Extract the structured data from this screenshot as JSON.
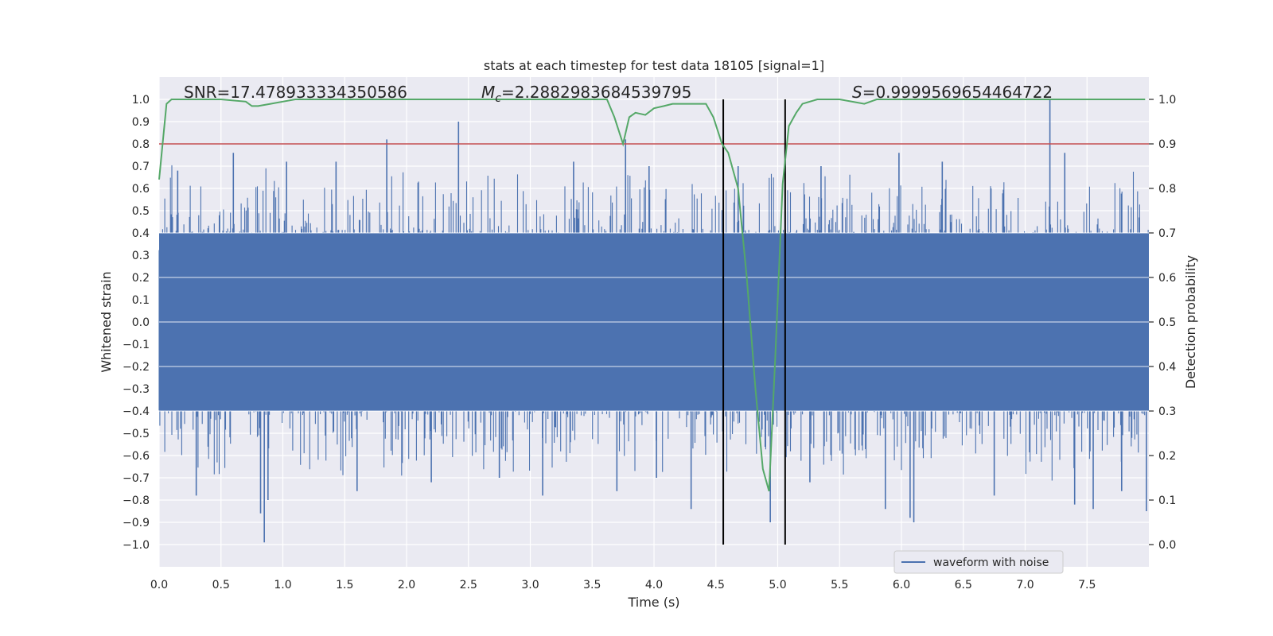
{
  "chart_data": {
    "type": "line",
    "title": "stats at each timestep for test data 18105 [signal=1]",
    "xlabel": "Time (s)",
    "ylabel_left": "Whitened strain",
    "ylabel_right": "Detection probability",
    "xlim": [
      0.0,
      8.0
    ],
    "ylim_left": [
      -1.1,
      1.1
    ],
    "ylim_right": [
      -0.05,
      1.05
    ],
    "x_ticks": [
      "0.0",
      "0.5",
      "1.0",
      "1.5",
      "2.0",
      "2.5",
      "3.0",
      "3.5",
      "4.0",
      "4.5",
      "5.0",
      "5.5",
      "6.0",
      "6.5",
      "7.0",
      "7.5"
    ],
    "y_left_ticks": [
      "1.0",
      "0.9",
      "0.8",
      "0.7",
      "0.6",
      "0.5",
      "0.4",
      "0.3",
      "0.2",
      "0.1",
      "0.0",
      "−0.1",
      "−0.2",
      "−0.3",
      "−0.4",
      "−0.5",
      "−0.6",
      "−0.7",
      "−0.8",
      "−0.9",
      "−1.0"
    ],
    "y_right_ticks": [
      "1.0",
      "0.9",
      "0.8",
      "0.7",
      "0.6",
      "0.5",
      "0.4",
      "0.3",
      "0.2",
      "0.1",
      "0.0"
    ],
    "annotations": {
      "snr_label": "SNR=17.478933334350586",
      "mc_symbol": "M",
      "mc_subscript": "c",
      "mc_value": "=2.2882983684539795",
      "s_symbol": "S",
      "s_value": "=0.9999569654464722"
    },
    "legend": {
      "label": "waveform with noise",
      "placement": "lower-right"
    },
    "threshold": {
      "value": 0.9,
      "axis": "right",
      "color": "#c44e52"
    },
    "vertical_markers": [
      {
        "x": 4.56,
        "label": "signal-start-marker"
      },
      {
        "x": 5.06,
        "label": "signal-end-marker"
      }
    ],
    "waveform": {
      "name": "waveform with noise",
      "color": "#4c72b0",
      "core_range": [
        -0.4,
        0.4
      ],
      "x_start": 0.0,
      "x_end": 8.0,
      "spikes": [
        {
          "x": 0.85,
          "y": -0.99
        },
        {
          "x": 0.82,
          "y": -0.86
        },
        {
          "x": 0.88,
          "y": -0.8
        },
        {
          "x": 0.3,
          "y": -0.78
        },
        {
          "x": 0.6,
          "y": 0.76
        },
        {
          "x": 1.84,
          "y": 0.82
        },
        {
          "x": 2.42,
          "y": 0.9
        },
        {
          "x": 3.77,
          "y": 0.82
        },
        {
          "x": 3.7,
          "y": -0.76
        },
        {
          "x": 4.3,
          "y": -0.84
        },
        {
          "x": 4.94,
          "y": -0.9
        },
        {
          "x": 5.87,
          "y": -0.84
        },
        {
          "x": 6.1,
          "y": -0.9
        },
        {
          "x": 6.07,
          "y": -0.88
        },
        {
          "x": 7.2,
          "y": 1.0
        },
        {
          "x": 7.4,
          "y": -0.82
        },
        {
          "x": 7.55,
          "y": -0.84
        },
        {
          "x": 7.98,
          "y": -0.85
        },
        {
          "x": 7.32,
          "y": 0.76
        },
        {
          "x": 5.98,
          "y": 0.76
        },
        {
          "x": 0.15,
          "y": 0.68
        },
        {
          "x": 1.43,
          "y": 0.72
        },
        {
          "x": 3.35,
          "y": 0.72
        },
        {
          "x": 4.68,
          "y": 0.7
        },
        {
          "x": 6.33,
          "y": 0.72
        },
        {
          "x": 1.6,
          "y": -0.76
        },
        {
          "x": 2.75,
          "y": -0.7
        },
        {
          "x": 3.1,
          "y": -0.78
        },
        {
          "x": 6.75,
          "y": -0.78
        },
        {
          "x": 7.78,
          "y": -0.76
        },
        {
          "x": 2.2,
          "y": -0.72
        },
        {
          "x": 5.26,
          "y": -0.72
        },
        {
          "x": 1.03,
          "y": 0.72
        },
        {
          "x": 3.96,
          "y": 0.7
        },
        {
          "x": 5.35,
          "y": 0.7
        },
        {
          "x": 4.02,
          "y": -0.7
        }
      ]
    },
    "probability": {
      "name": "detection probability",
      "color": "#55a868",
      "x": [
        0.0,
        0.06,
        0.1,
        0.2,
        0.5,
        0.7,
        0.75,
        0.8,
        0.9,
        1.0,
        1.1,
        1.2,
        1.5,
        2.0,
        3.0,
        3.5,
        3.62,
        3.68,
        3.75,
        3.8,
        3.85,
        3.93,
        4.0,
        4.08,
        4.15,
        4.25,
        4.35,
        4.42,
        4.48,
        4.55,
        4.6,
        4.68,
        4.75,
        4.82,
        4.88,
        4.93,
        4.98,
        5.04,
        5.09,
        5.15,
        5.2,
        5.26,
        5.32,
        5.38,
        5.5,
        5.7,
        5.8,
        6.0,
        7.0,
        7.97
      ],
      "y": [
        0.82,
        0.99,
        1.0,
        1.0,
        1.0,
        0.995,
        0.985,
        0.985,
        0.99,
        0.995,
        1.0,
        1.0,
        1.0,
        1.0,
        1.0,
        1.0,
        1.0,
        0.96,
        0.9,
        0.96,
        0.97,
        0.965,
        0.98,
        0.985,
        0.99,
        0.99,
        0.99,
        0.99,
        0.96,
        0.9,
        0.88,
        0.8,
        0.6,
        0.35,
        0.17,
        0.12,
        0.42,
        0.81,
        0.94,
        0.97,
        0.99,
        0.995,
        1.0,
        1.0,
        1.0,
        0.99,
        1.0,
        1.0,
        1.0,
        1.0
      ]
    }
  },
  "colors": {
    "plot_background": "#eaeaf2",
    "grid": "#ffffff",
    "marker_line": "#000000",
    "legend_background": "#eaeaf2",
    "legend_border": "#cccccc"
  }
}
